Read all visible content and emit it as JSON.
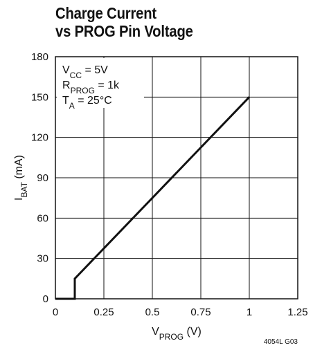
{
  "chart_data": {
    "type": "line",
    "title_lines": [
      "Charge Current",
      "vs PROG Pin Voltage"
    ],
    "xlabel": {
      "main": "V",
      "sub": "PROG",
      "rest": " (V)"
    },
    "ylabel": {
      "main": "I",
      "sub": "BAT",
      "rest": " (mA)"
    },
    "xlim": [
      0,
      1.25
    ],
    "ylim": [
      0,
      180
    ],
    "x_ticks": [
      0,
      0.25,
      0.5,
      0.75,
      1,
      1.25
    ],
    "x_tick_labels": [
      "0",
      "0.25",
      "0.5",
      "0.75",
      "1",
      "1.25"
    ],
    "y_ticks": [
      0,
      30,
      60,
      90,
      120,
      150,
      180
    ],
    "y_tick_labels": [
      "0",
      "30",
      "60",
      "90",
      "120",
      "150",
      "180"
    ],
    "grid": true,
    "series": [
      {
        "x": [
          0,
          0.1,
          0.1,
          1.0
        ],
        "y": [
          0,
          0,
          15,
          150
        ]
      }
    ],
    "conditions": [
      {
        "main": "V",
        "sub": "CC",
        "rest": " = 5V"
      },
      {
        "main": "R",
        "sub": "PROG",
        "rest": " = 1k"
      },
      {
        "main": "T",
        "sub": "A",
        "rest": " = 25°C"
      }
    ],
    "figure_code": "4054L G03"
  }
}
